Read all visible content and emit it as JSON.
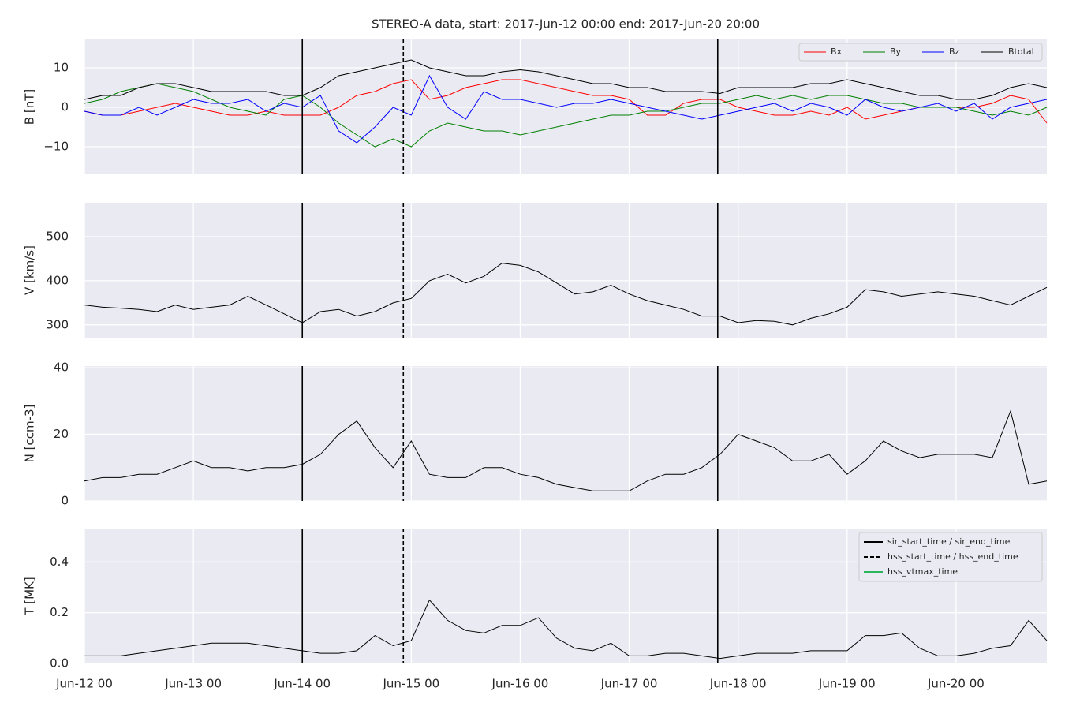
{
  "chart_data": [
    {
      "type": "line",
      "title": "STEREO-A data, start: 2017-Jun-12 00:00  end: 2017-Jun-20 20:00",
      "ylabel": "B [nT]",
      "x": [
        "2017-06-12T00:00",
        "2017-06-12T04:00",
        "2017-06-12T08:00",
        "2017-06-12T12:00",
        "2017-06-12T16:00",
        "2017-06-12T20:00",
        "2017-06-13T00:00",
        "2017-06-13T04:00",
        "2017-06-13T08:00",
        "2017-06-13T12:00",
        "2017-06-13T16:00",
        "2017-06-13T20:00",
        "2017-06-14T00:00",
        "2017-06-14T04:00",
        "2017-06-14T08:00",
        "2017-06-14T12:00",
        "2017-06-14T16:00",
        "2017-06-14T20:00",
        "2017-06-15T00:00",
        "2017-06-15T04:00",
        "2017-06-15T08:00",
        "2017-06-15T12:00",
        "2017-06-15T16:00",
        "2017-06-15T20:00",
        "2017-06-16T00:00",
        "2017-06-16T04:00",
        "2017-06-16T08:00",
        "2017-06-16T12:00",
        "2017-06-16T16:00",
        "2017-06-16T20:00",
        "2017-06-17T00:00",
        "2017-06-17T04:00",
        "2017-06-17T08:00",
        "2017-06-17T12:00",
        "2017-06-17T16:00",
        "2017-06-17T20:00",
        "2017-06-18T00:00",
        "2017-06-18T04:00",
        "2017-06-18T08:00",
        "2017-06-18T12:00",
        "2017-06-18T16:00",
        "2017-06-18T20:00",
        "2017-06-19T00:00",
        "2017-06-19T04:00",
        "2017-06-19T08:00",
        "2017-06-19T12:00",
        "2017-06-19T16:00",
        "2017-06-19T20:00",
        "2017-06-20T00:00",
        "2017-06-20T04:00",
        "2017-06-20T08:00",
        "2017-06-20T12:00",
        "2017-06-20T16:00",
        "2017-06-20T20:00"
      ],
      "series": [
        {
          "name": "Bx",
          "color": "#ff0000",
          "values": [
            -1,
            -2,
            -2,
            -1,
            0,
            1,
            0,
            -1,
            -2,
            -2,
            -1,
            -2,
            -2,
            -2,
            0,
            3,
            4,
            6,
            7,
            2,
            3,
            5,
            6,
            7,
            7,
            6,
            5,
            4,
            3,
            3,
            2,
            -2,
            -2,
            1,
            2,
            2,
            0,
            -1,
            -2,
            -2,
            -1,
            -2,
            0,
            -3,
            -2,
            -1,
            0,
            0,
            0,
            0,
            1,
            3,
            2,
            -4
          ]
        },
        {
          "name": "By",
          "color": "#008000",
          "values": [
            1,
            2,
            4,
            5,
            6,
            5,
            4,
            2,
            0,
            -1,
            -2,
            2,
            3,
            0,
            -4,
            -7,
            -10,
            -8,
            -10,
            -6,
            -4,
            -5,
            -6,
            -6,
            -7,
            -6,
            -5,
            -4,
            -3,
            -2,
            -2,
            -1,
            -1,
            0,
            1,
            1,
            2,
            3,
            2,
            3,
            2,
            3,
            3,
            2,
            1,
            1,
            0,
            0,
            0,
            -1,
            -2,
            -1,
            -2,
            0
          ]
        },
        {
          "name": "Bz",
          "color": "#0000ff",
          "values": [
            -1,
            -2,
            -2,
            0,
            -2,
            0,
            2,
            1,
            1,
            2,
            -1,
            1,
            0,
            3,
            -6,
            -9,
            -5,
            0,
            -2,
            8,
            0,
            -3,
            4,
            2,
            2,
            1,
            0,
            1,
            1,
            2,
            1,
            0,
            -1,
            -2,
            -3,
            -2,
            -1,
            0,
            1,
            -1,
            1,
            0,
            -2,
            2,
            0,
            -1,
            0,
            1,
            -1,
            1,
            -3,
            0,
            1,
            2
          ]
        },
        {
          "name": "Btotal",
          "color": "#000000",
          "values": [
            2,
            3,
            3,
            5,
            6,
            6,
            5,
            4,
            4,
            4,
            4,
            3,
            3,
            5,
            8,
            9,
            10,
            11,
            12,
            10,
            9,
            8,
            8,
            9,
            9.5,
            9,
            8,
            7,
            6,
            6,
            5,
            5,
            4,
            4,
            4,
            3.5,
            5,
            5,
            5,
            5,
            6,
            6,
            7,
            6,
            5,
            4,
            3,
            3,
            2,
            2,
            3,
            5,
            6,
            5
          ]
        }
      ],
      "xlim": [
        "2017-06-12T00:00",
        "2017-06-20T20:00"
      ],
      "xticks": [
        "2017-06-12T00:00",
        "2017-06-13T00:00",
        "2017-06-14T00:00",
        "2017-06-15T00:00",
        "2017-06-16T00:00",
        "2017-06-17T00:00",
        "2017-06-18T00:00",
        "2017-06-19T00:00",
        "2017-06-20T00:00"
      ],
      "ylim": [
        -17,
        17.2
      ],
      "yticks": [
        {
          "value": -10,
          "label": "−10"
        },
        0,
        10
      ],
      "vlines": [
        {
          "x": "2017-06-14T00:00",
          "style": "solid"
        },
        {
          "x": "2017-06-14T22:15",
          "style": "dashed"
        },
        {
          "x": "2017-06-17T19:30",
          "style": "solid"
        }
      ],
      "grid": true,
      "background": "#eaeaf2",
      "legend": "upper right"
    },
    {
      "type": "line",
      "ylabel": "V [km/s]",
      "x": [
        "2017-06-12T00:00",
        "2017-06-12T04:00",
        "2017-06-12T08:00",
        "2017-06-12T12:00",
        "2017-06-12T16:00",
        "2017-06-12T20:00",
        "2017-06-13T00:00",
        "2017-06-13T04:00",
        "2017-06-13T08:00",
        "2017-06-13T12:00",
        "2017-06-13T16:00",
        "2017-06-13T20:00",
        "2017-06-14T00:00",
        "2017-06-14T04:00",
        "2017-06-14T08:00",
        "2017-06-14T12:00",
        "2017-06-14T16:00",
        "2017-06-14T20:00",
        "2017-06-15T00:00",
        "2017-06-15T04:00",
        "2017-06-15T08:00",
        "2017-06-15T12:00",
        "2017-06-15T16:00",
        "2017-06-15T20:00",
        "2017-06-16T00:00",
        "2017-06-16T04:00",
        "2017-06-16T08:00",
        "2017-06-16T12:00",
        "2017-06-16T16:00",
        "2017-06-16T20:00",
        "2017-06-17T00:00",
        "2017-06-17T04:00",
        "2017-06-17T08:00",
        "2017-06-17T12:00",
        "2017-06-17T16:00",
        "2017-06-17T20:00",
        "2017-06-18T00:00",
        "2017-06-18T04:00",
        "2017-06-18T08:00",
        "2017-06-18T12:00",
        "2017-06-18T16:00",
        "2017-06-18T20:00",
        "2017-06-19T00:00",
        "2017-06-19T04:00",
        "2017-06-19T08:00",
        "2017-06-19T12:00",
        "2017-06-19T16:00",
        "2017-06-19T20:00",
        "2017-06-20T00:00",
        "2017-06-20T04:00",
        "2017-06-20T08:00",
        "2017-06-20T12:00",
        "2017-06-20T16:00",
        "2017-06-20T20:00"
      ],
      "series": [
        {
          "color": "#000000",
          "values": [
            345,
            340,
            338,
            335,
            330,
            345,
            335,
            340,
            345,
            365,
            345,
            325,
            305,
            330,
            335,
            320,
            330,
            350,
            360,
            400,
            415,
            395,
            410,
            440,
            435,
            420,
            395,
            370,
            375,
            390,
            370,
            355,
            345,
            335,
            320,
            320,
            305,
            310,
            308,
            300,
            315,
            325,
            340,
            380,
            375,
            365,
            370,
            375,
            370,
            365,
            355,
            345,
            365,
            385
          ]
        }
      ],
      "xlim": [
        "2017-06-12T00:00",
        "2017-06-20T20:00"
      ],
      "xticks": [
        "2017-06-12T00:00",
        "2017-06-13T00:00",
        "2017-06-14T00:00",
        "2017-06-15T00:00",
        "2017-06-16T00:00",
        "2017-06-17T00:00",
        "2017-06-18T00:00",
        "2017-06-19T00:00",
        "2017-06-20T00:00"
      ],
      "ylim": [
        271,
        577
      ],
      "yticks": [
        300,
        400,
        500
      ],
      "vlines": [
        {
          "x": "2017-06-14T00:00",
          "style": "solid"
        },
        {
          "x": "2017-06-14T22:15",
          "style": "dashed"
        },
        {
          "x": "2017-06-17T19:30",
          "style": "solid"
        }
      ],
      "grid": true,
      "background": "#eaeaf2"
    },
    {
      "type": "line",
      "ylabel": "N [ccm-3]",
      "x": [
        "2017-06-12T00:00",
        "2017-06-12T04:00",
        "2017-06-12T08:00",
        "2017-06-12T12:00",
        "2017-06-12T16:00",
        "2017-06-12T20:00",
        "2017-06-13T00:00",
        "2017-06-13T04:00",
        "2017-06-13T08:00",
        "2017-06-13T12:00",
        "2017-06-13T16:00",
        "2017-06-13T20:00",
        "2017-06-14T00:00",
        "2017-06-14T04:00",
        "2017-06-14T08:00",
        "2017-06-14T12:00",
        "2017-06-14T16:00",
        "2017-06-14T20:00",
        "2017-06-15T00:00",
        "2017-06-15T04:00",
        "2017-06-15T08:00",
        "2017-06-15T12:00",
        "2017-06-15T16:00",
        "2017-06-15T20:00",
        "2017-06-16T00:00",
        "2017-06-16T04:00",
        "2017-06-16T08:00",
        "2017-06-16T12:00",
        "2017-06-16T16:00",
        "2017-06-16T20:00",
        "2017-06-17T00:00",
        "2017-06-17T04:00",
        "2017-06-17T08:00",
        "2017-06-17T12:00",
        "2017-06-17T16:00",
        "2017-06-17T20:00",
        "2017-06-18T00:00",
        "2017-06-18T04:00",
        "2017-06-18T08:00",
        "2017-06-18T12:00",
        "2017-06-18T16:00",
        "2017-06-18T20:00",
        "2017-06-19T00:00",
        "2017-06-19T04:00",
        "2017-06-19T08:00",
        "2017-06-19T12:00",
        "2017-06-19T16:00",
        "2017-06-19T20:00",
        "2017-06-20T00:00",
        "2017-06-20T04:00",
        "2017-06-20T08:00",
        "2017-06-20T12:00",
        "2017-06-20T16:00",
        "2017-06-20T20:00"
      ],
      "series": [
        {
          "color": "#000000",
          "values": [
            6,
            7,
            7,
            8,
            8,
            10,
            12,
            10,
            10,
            9,
            10,
            10,
            11,
            14,
            20,
            24,
            16,
            10,
            18,
            8,
            7,
            7,
            10,
            10,
            8,
            7,
            5,
            4,
            3,
            3,
            3,
            6,
            8,
            8,
            10,
            14,
            20,
            18,
            16,
            12,
            12,
            14,
            8,
            12,
            18,
            15,
            13,
            14,
            14,
            14,
            13,
            27,
            5,
            6
          ]
        }
      ],
      "xlim": [
        "2017-06-12T00:00",
        "2017-06-20T20:00"
      ],
      "xticks": [
        "2017-06-12T00:00",
        "2017-06-13T00:00",
        "2017-06-14T00:00",
        "2017-06-15T00:00",
        "2017-06-16T00:00",
        "2017-06-17T00:00",
        "2017-06-18T00:00",
        "2017-06-19T00:00",
        "2017-06-20T00:00"
      ],
      "ylim": [
        0,
        40.5
      ],
      "yticks": [
        0,
        20,
        40
      ],
      "vlines": [
        {
          "x": "2017-06-14T00:00",
          "style": "solid"
        },
        {
          "x": "2017-06-14T22:15",
          "style": "dashed"
        },
        {
          "x": "2017-06-17T19:30",
          "style": "solid"
        }
      ],
      "grid": true,
      "background": "#eaeaf2"
    },
    {
      "type": "line",
      "ylabel": "T [MK]",
      "x": [
        "2017-06-12T00:00",
        "2017-06-12T04:00",
        "2017-06-12T08:00",
        "2017-06-12T12:00",
        "2017-06-12T16:00",
        "2017-06-12T20:00",
        "2017-06-13T00:00",
        "2017-06-13T04:00",
        "2017-06-13T08:00",
        "2017-06-13T12:00",
        "2017-06-13T16:00",
        "2017-06-13T20:00",
        "2017-06-14T00:00",
        "2017-06-14T04:00",
        "2017-06-14T08:00",
        "2017-06-14T12:00",
        "2017-06-14T16:00",
        "2017-06-14T20:00",
        "2017-06-15T00:00",
        "2017-06-15T04:00",
        "2017-06-15T08:00",
        "2017-06-15T12:00",
        "2017-06-15T16:00",
        "2017-06-15T20:00",
        "2017-06-16T00:00",
        "2017-06-16T04:00",
        "2017-06-16T08:00",
        "2017-06-16T12:00",
        "2017-06-16T16:00",
        "2017-06-16T20:00",
        "2017-06-17T00:00",
        "2017-06-17T04:00",
        "2017-06-17T08:00",
        "2017-06-17T12:00",
        "2017-06-17T16:00",
        "2017-06-17T20:00",
        "2017-06-18T00:00",
        "2017-06-18T04:00",
        "2017-06-18T08:00",
        "2017-06-18T12:00",
        "2017-06-18T16:00",
        "2017-06-18T20:00",
        "2017-06-19T00:00",
        "2017-06-19T04:00",
        "2017-06-19T08:00",
        "2017-06-19T12:00",
        "2017-06-19T16:00",
        "2017-06-19T20:00",
        "2017-06-20T00:00",
        "2017-06-20T04:00",
        "2017-06-20T08:00",
        "2017-06-20T12:00",
        "2017-06-20T16:00",
        "2017-06-20T20:00"
      ],
      "series": [
        {
          "color": "#000000",
          "values": [
            0.03,
            0.03,
            0.03,
            0.04,
            0.05,
            0.06,
            0.07,
            0.08,
            0.08,
            0.08,
            0.07,
            0.06,
            0.05,
            0.04,
            0.04,
            0.05,
            0.11,
            0.07,
            0.09,
            0.25,
            0.17,
            0.13,
            0.12,
            0.15,
            0.15,
            0.18,
            0.1,
            0.06,
            0.05,
            0.08,
            0.03,
            0.03,
            0.04,
            0.04,
            0.03,
            0.02,
            0.03,
            0.04,
            0.04,
            0.04,
            0.05,
            0.05,
            0.05,
            0.11,
            0.11,
            0.12,
            0.06,
            0.03,
            0.03,
            0.04,
            0.06,
            0.07,
            0.17,
            0.09
          ]
        }
      ],
      "xlim": [
        "2017-06-12T00:00",
        "2017-06-20T20:00"
      ],
      "xticks": [
        {
          "value": "2017-06-12T00:00",
          "label": "Jun-12 00"
        },
        {
          "value": "2017-06-13T00:00",
          "label": "Jun-13 00"
        },
        {
          "value": "2017-06-14T00:00",
          "label": "Jun-14 00"
        },
        {
          "value": "2017-06-15T00:00",
          "label": "Jun-15 00"
        },
        {
          "value": "2017-06-16T00:00",
          "label": "Jun-16 00"
        },
        {
          "value": "2017-06-17T00:00",
          "label": "Jun-17 00"
        },
        {
          "value": "2017-06-18T00:00",
          "label": "Jun-18 00"
        },
        {
          "value": "2017-06-19T00:00",
          "label": "Jun-19 00"
        },
        {
          "value": "2017-06-20T00:00",
          "label": "Jun-20 00"
        }
      ],
      "ylim": [
        0,
        0.532
      ],
      "yticks": [
        {
          "value": 0,
          "label": "0.0"
        },
        0.2,
        0.4
      ],
      "vlines": [
        {
          "x": "2017-06-14T00:00",
          "style": "solid"
        },
        {
          "x": "2017-06-14T22:15",
          "style": "dashed"
        },
        {
          "x": "2017-06-17T19:30",
          "style": "solid"
        }
      ],
      "event_legend": [
        {
          "name": "sir_start_time / sir_end_time",
          "color": "#000000",
          "style": "solid"
        },
        {
          "name": "hss_start_time / hss_end_time",
          "color": "#000000",
          "style": "dashed"
        },
        {
          "name": "hss_vtmax_time",
          "color": "#2db55d",
          "style": "solid"
        }
      ],
      "grid": true,
      "background": "#eaeaf2",
      "legend": "upper right"
    }
  ]
}
